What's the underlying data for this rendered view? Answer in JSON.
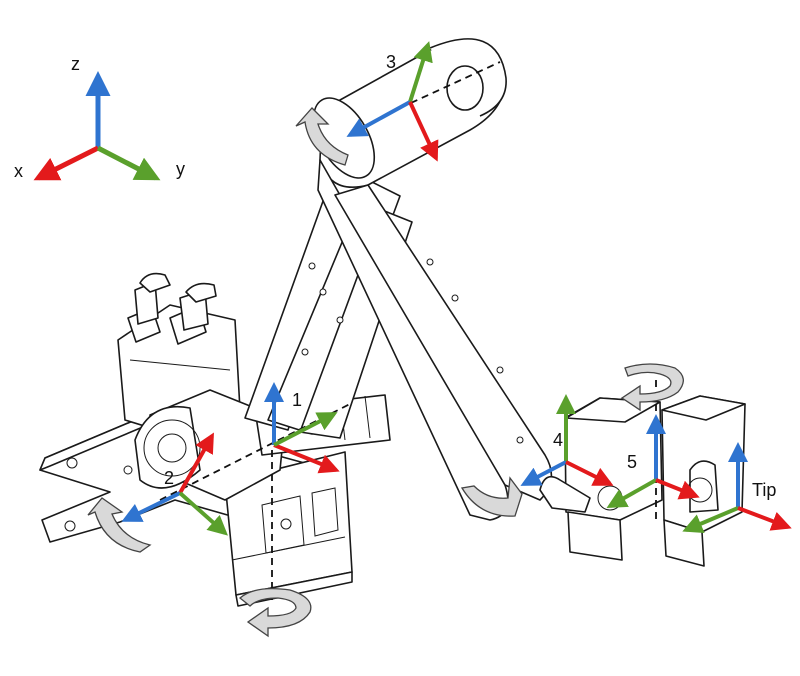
{
  "colors": {
    "x": "#e31a1c",
    "y": "#5aa02c",
    "z": "#2f74d0"
  },
  "reference_frame": {
    "x_label": "x",
    "y_label": "y",
    "z_label": "z"
  },
  "joints": [
    {
      "id": "1",
      "label": "1"
    },
    {
      "id": "2",
      "label": "2"
    },
    {
      "id": "3",
      "label": "3"
    },
    {
      "id": "4",
      "label": "4"
    },
    {
      "id": "5",
      "label": "5"
    },
    {
      "id": "tip",
      "label": "Tip"
    }
  ],
  "icons": [
    "rotation-arrow-icon",
    "coordinate-frame-icon"
  ]
}
